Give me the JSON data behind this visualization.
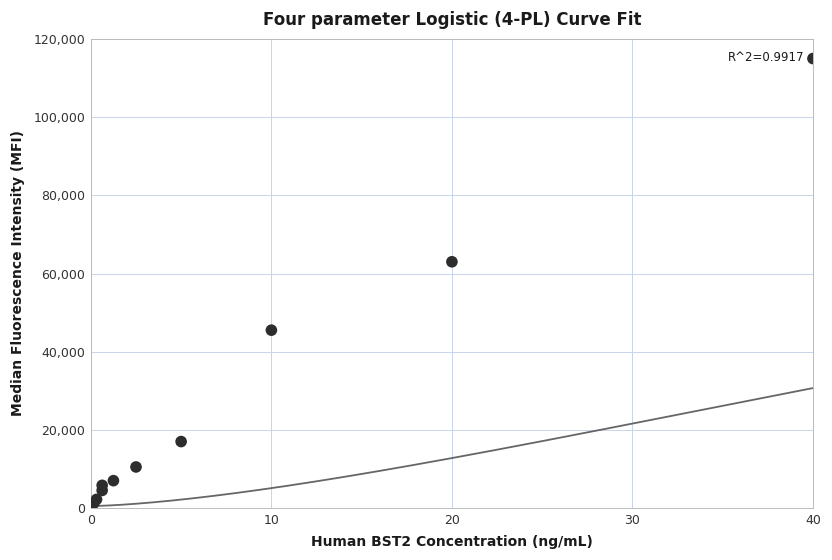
{
  "title": "Four parameter Logistic (4-PL) Curve Fit",
  "xlabel": "Human BST2 Concentration (ng/mL)",
  "ylabel": "Median Fluorescence Intensity (MFI)",
  "scatter_x": [
    0.156,
    0.313,
    0.625,
    0.625,
    1.25,
    2.5,
    5,
    10,
    20,
    40
  ],
  "scatter_y": [
    1200,
    2200,
    4500,
    5800,
    7000,
    10500,
    17000,
    45500,
    63000,
    115000
  ],
  "r_squared": "R^2=0.9917",
  "xlim": [
    0,
    40
  ],
  "ylim": [
    0,
    120000
  ],
  "yticks": [
    0,
    20000,
    40000,
    60000,
    80000,
    100000,
    120000
  ],
  "xticks": [
    0,
    10,
    20,
    30,
    40
  ],
  "dot_color": "#2d2d2d",
  "dot_size": 70,
  "curve_color": "#666666",
  "curve_linewidth": 1.3,
  "grid_color": "#c8d4e8",
  "background_color": "#ffffff",
  "title_fontsize": 12,
  "label_fontsize": 10,
  "tick_fontsize": 9
}
